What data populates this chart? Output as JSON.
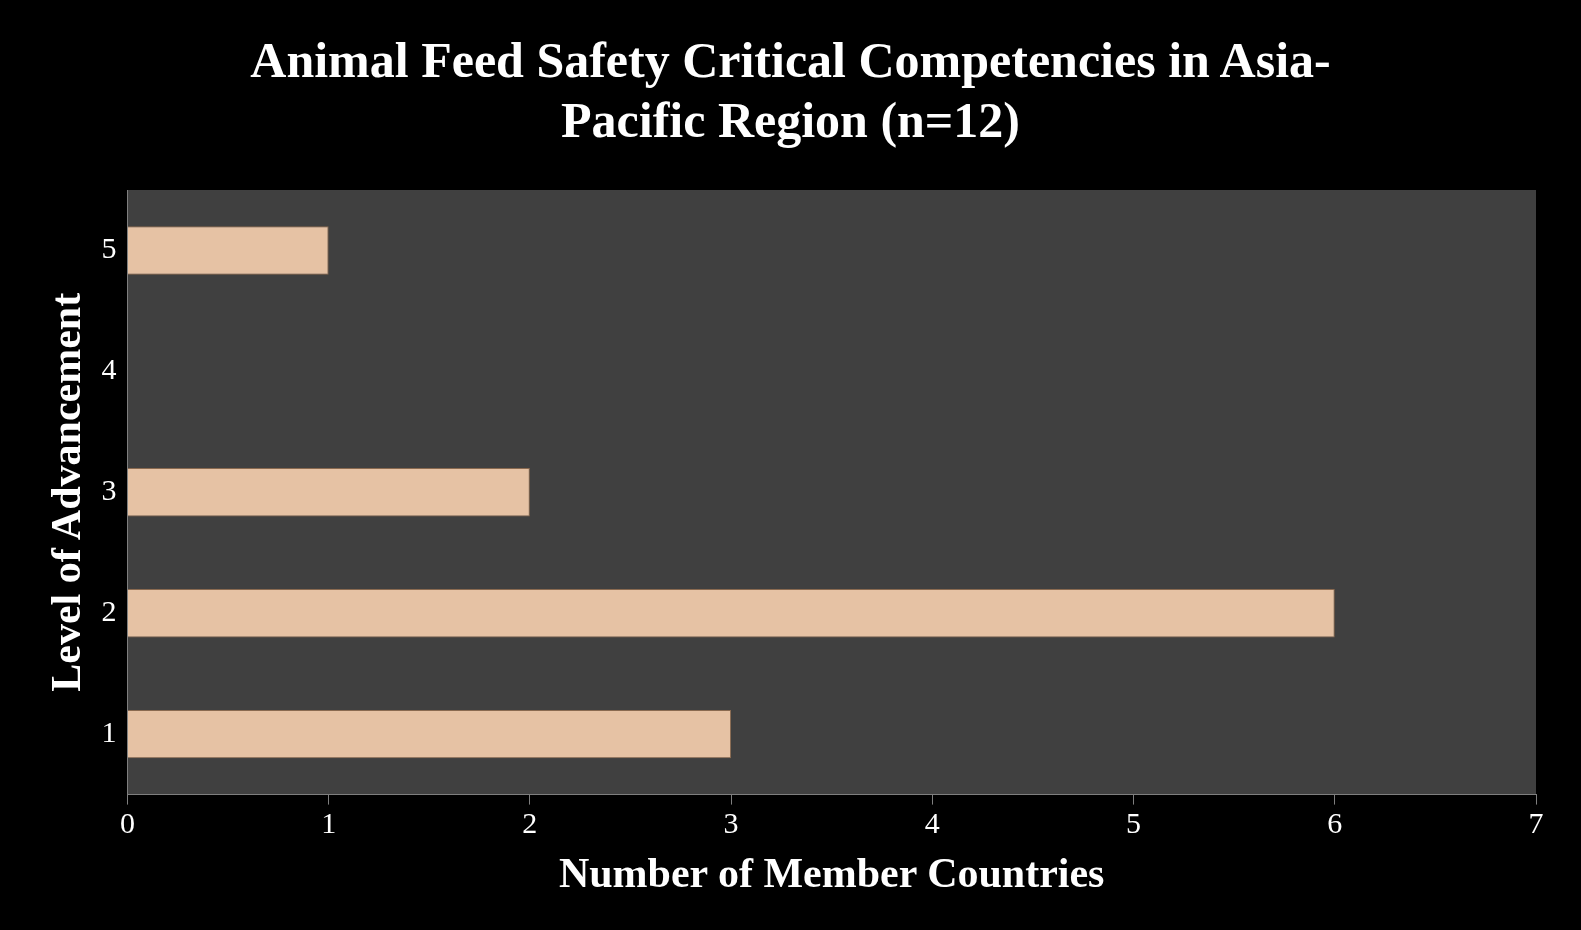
{
  "chart_data": {
    "type": "bar",
    "orientation": "horizontal",
    "title": "Animal Feed Safety Critical Competencies in Asia-Pacific Region (n=12)",
    "xlabel": "Number of Member Countries",
    "ylabel": "Level of Advancement",
    "categories": [
      "5",
      "4",
      "3",
      "2",
      "1"
    ],
    "values": [
      1,
      0,
      2,
      6,
      3
    ],
    "color": "#e6c2a4",
    "xlim": [
      0,
      7
    ],
    "xticks": [
      0,
      1,
      2,
      3,
      4,
      5,
      6,
      7
    ],
    "grid": false,
    "legend": false
  }
}
